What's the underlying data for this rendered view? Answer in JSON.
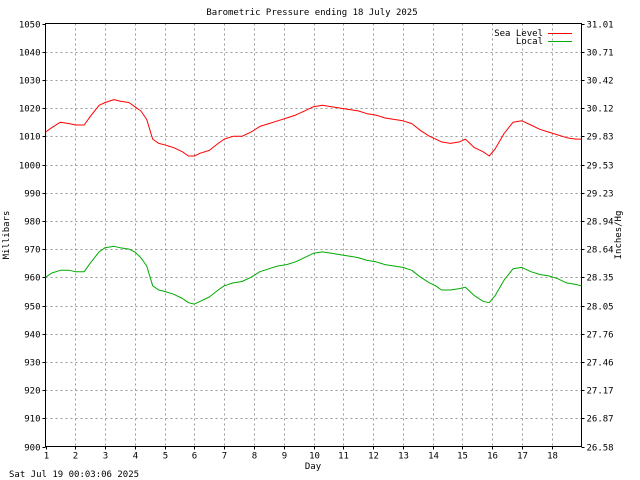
{
  "footer": {
    "timestamp": "Sat Jul 19 00:03:06 2025"
  },
  "chart_data": {
    "type": "line",
    "title": "Barometric Pressure ending 18 July 2025",
    "xlabel": "Day",
    "ylabel": "Millibars",
    "ylabel_right": "Inches/Hg",
    "xlim": [
      1,
      19
    ],
    "ylim": [
      900,
      1050
    ],
    "x_ticks": [
      "1",
      "2",
      "3",
      "4",
      "5",
      "6",
      "7",
      "8",
      "9",
      "10",
      "11",
      "12",
      "13",
      "14",
      "15",
      "16",
      "17",
      "18"
    ],
    "y_ticks": [
      "900",
      "910",
      "920",
      "930",
      "940",
      "950",
      "960",
      "970",
      "980",
      "990",
      "1000",
      "1010",
      "1020",
      "1030",
      "1040",
      "1050"
    ],
    "y_ticks_right": [
      "26.58",
      "26.87",
      "27.17",
      "27.46",
      "27.76",
      "28.05",
      "28.35",
      "28.64",
      "28.94",
      "29.23",
      "29.53",
      "29.83",
      "30.12",
      "30.42",
      "30.71",
      "31.01"
    ],
    "grid": true,
    "legend_position": "top-right",
    "series": [
      {
        "name": "Sea Level",
        "color": "#ff0000",
        "x": [
          1,
          1.2,
          1.5,
          1.8,
          2.0,
          2.3,
          2.5,
          2.8,
          3.0,
          3.3,
          3.5,
          3.8,
          4.0,
          4.2,
          4.4,
          4.6,
          4.8,
          5.0,
          5.3,
          5.6,
          5.8,
          6.0,
          6.2,
          6.5,
          6.8,
          7.0,
          7.3,
          7.6,
          7.9,
          8.2,
          8.5,
          8.8,
          9.1,
          9.4,
          9.7,
          10.0,
          10.3,
          10.6,
          10.9,
          11.2,
          11.5,
          11.8,
          12.1,
          12.4,
          12.7,
          13.0,
          13.3,
          13.6,
          13.9,
          14.1,
          14.3,
          14.6,
          14.9,
          15.1,
          15.4,
          15.7,
          15.9,
          16.1,
          16.4,
          16.7,
          17.0,
          17.3,
          17.6,
          17.9,
          18.2,
          18.5,
          18.8,
          19.0
        ],
        "values": [
          1011.5,
          1013,
          1015,
          1014.5,
          1014,
          1014,
          1017,
          1021,
          1022,
          1023,
          1022.5,
          1022,
          1020.5,
          1019,
          1016,
          1009,
          1007.5,
          1007,
          1006,
          1004.5,
          1003,
          1003,
          1004,
          1005,
          1007.5,
          1009,
          1010,
          1010,
          1011.5,
          1013.5,
          1014.5,
          1015.5,
          1016.5,
          1017.5,
          1019,
          1020.5,
          1021,
          1020.5,
          1020,
          1019.5,
          1019,
          1018,
          1017.5,
          1016.5,
          1016,
          1015.5,
          1014.5,
          1012,
          1010,
          1009,
          1008,
          1007.5,
          1008,
          1009,
          1006,
          1004.5,
          1003,
          1005.5,
          1011,
          1015,
          1015.5,
          1014,
          1012.5,
          1011.5,
          1010.5,
          1009.5,
          1009,
          1009
        ]
      },
      {
        "name": "Local",
        "color": "#00aa00",
        "x": [
          1,
          1.2,
          1.5,
          1.8,
          2.0,
          2.3,
          2.5,
          2.8,
          3.0,
          3.3,
          3.5,
          3.8,
          4.0,
          4.2,
          4.4,
          4.6,
          4.8,
          5.0,
          5.3,
          5.6,
          5.8,
          6.0,
          6.2,
          6.5,
          6.8,
          7.0,
          7.3,
          7.6,
          7.9,
          8.2,
          8.5,
          8.8,
          9.1,
          9.4,
          9.7,
          10.0,
          10.3,
          10.6,
          10.9,
          11.2,
          11.5,
          11.8,
          12.1,
          12.4,
          12.7,
          13.0,
          13.3,
          13.6,
          13.9,
          14.1,
          14.3,
          14.6,
          14.9,
          15.1,
          15.4,
          15.7,
          15.9,
          16.1,
          16.4,
          16.7,
          17.0,
          17.3,
          17.6,
          17.9,
          18.2,
          18.5,
          18.8,
          19.0
        ],
        "values": [
          960,
          961.5,
          962.5,
          962.5,
          962,
          962,
          965,
          969,
          970.5,
          971,
          970.5,
          970,
          969,
          967,
          964,
          957,
          955.5,
          955,
          954,
          952.5,
          951,
          950.5,
          951.5,
          953,
          955.5,
          957,
          958,
          958.5,
          960,
          962,
          963,
          964,
          964.5,
          965.5,
          967,
          968.5,
          969,
          968.5,
          968,
          967.5,
          967,
          966,
          965.5,
          964.5,
          964,
          963.5,
          962.5,
          960,
          958,
          957,
          955.5,
          955.5,
          956,
          956.5,
          953.5,
          951.5,
          951,
          953.5,
          959,
          963,
          963.5,
          962,
          961,
          960.5,
          959.5,
          958,
          957.5,
          957
        ]
      }
    ]
  }
}
